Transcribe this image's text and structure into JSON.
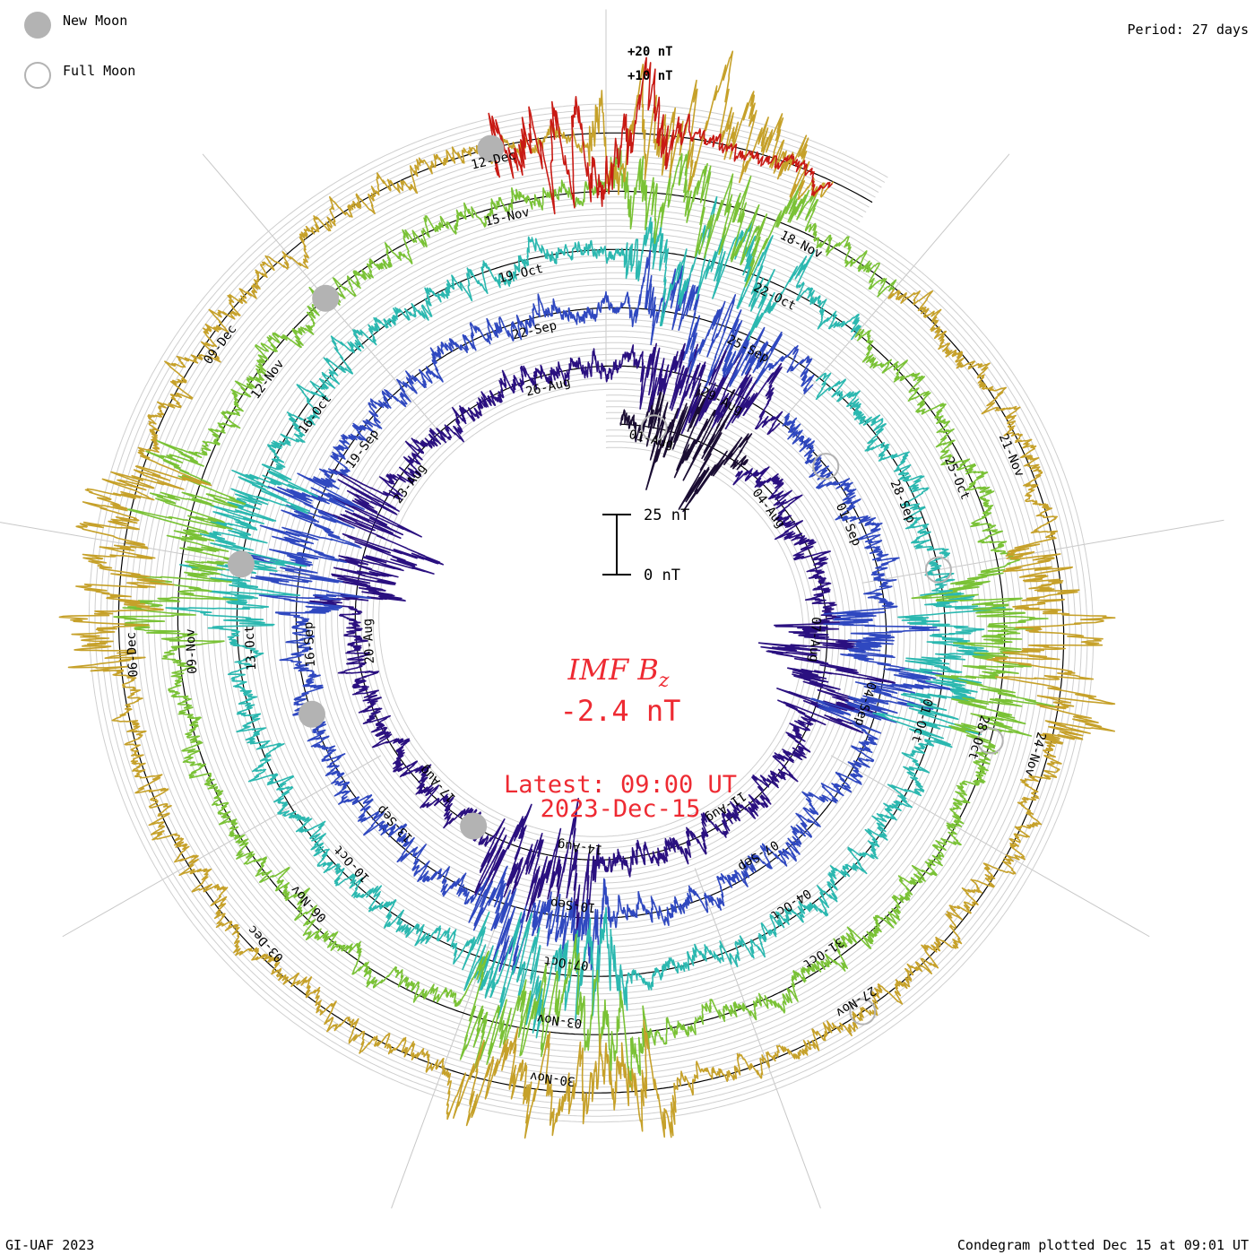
{
  "header": {
    "legend_new_moon": "New Moon",
    "legend_full_moon": "Full Moon",
    "period_label": "Period: 27 days",
    "scale_plus20": "+20 nT",
    "scale_plus10": "+10 nT"
  },
  "center": {
    "bar_top_label": "25 nT",
    "bar_bottom_label": "0 nT",
    "param_name": "IMF B",
    "param_subscript": "z",
    "param_value": "-2.4 nT",
    "latest_label": "Latest: 09:00 UT",
    "latest_date": "2023-Dec-15"
  },
  "footer": {
    "credit": "GI-UAF 2023",
    "plotted": "Condegram plotted Dec 15 at 09:01 UT"
  },
  "chart_data": {
    "type": "line",
    "title": "IMF Bz",
    "period_days": 27,
    "units": "nT",
    "scale_bar_nT": [
      0,
      25
    ],
    "latest_value_nT": -2.4,
    "series": [
      {
        "color": "#1a0d33",
        "start": "2023-07-31",
        "end": "2023-08-03",
        "dates": [
          "01-Aug"
        ]
      },
      {
        "color": "#2a1080",
        "start": "2023-08-03",
        "end": "2023-08-30",
        "dates": [
          "04-Aug",
          "07-Aug",
          "11-Aug",
          "14-Aug",
          "17-Aug",
          "20-Aug",
          "23-Aug",
          "26-Aug",
          "29-Aug"
        ]
      },
      {
        "color": "#2f48c0",
        "start": "2023-08-30",
        "end": "2023-09-26",
        "dates": [
          "01-Sep",
          "04-Sep",
          "07-Sep",
          "10-Sep",
          "13-Sep",
          "16-Sep",
          "19-Sep",
          "22-Sep",
          "25-Sep"
        ]
      },
      {
        "color": "#2bb8b0",
        "start": "2023-09-26",
        "end": "2023-10-23",
        "dates": [
          "28-Sep",
          "01-Oct",
          "04-Oct",
          "07-Oct",
          "10-Oct",
          "13-Oct",
          "16-Oct",
          "19-Oct",
          "22-Oct"
        ]
      },
      {
        "color": "#7ac236",
        "start": "2023-10-23",
        "end": "2023-11-19",
        "dates": [
          "25-Oct",
          "28-Oct",
          "31-Oct",
          "03-Nov",
          "06-Nov",
          "09-Nov",
          "12-Nov",
          "15-Nov",
          "18-Nov"
        ]
      },
      {
        "color": "#c6a12a",
        "start": "2023-11-19",
        "end": "2023-12-15",
        "dates": [
          "21-Nov",
          "24-Nov",
          "27-Nov",
          "30-Nov",
          "03-Dec",
          "06-Dec",
          "09-Dec",
          "12-Dec"
        ]
      },
      {
        "color": "#c81a14",
        "start": "2023-12-12",
        "end": "2023-12-15",
        "dates": []
      }
    ],
    "new_moons": [
      "2023-08-16",
      "2023-09-15",
      "2023-10-14",
      "2023-11-13",
      "2023-12-12"
    ],
    "full_moons": [
      "2023-08-01",
      "2023-08-31",
      "2023-09-29",
      "2023-10-28",
      "2023-11-27"
    ]
  }
}
